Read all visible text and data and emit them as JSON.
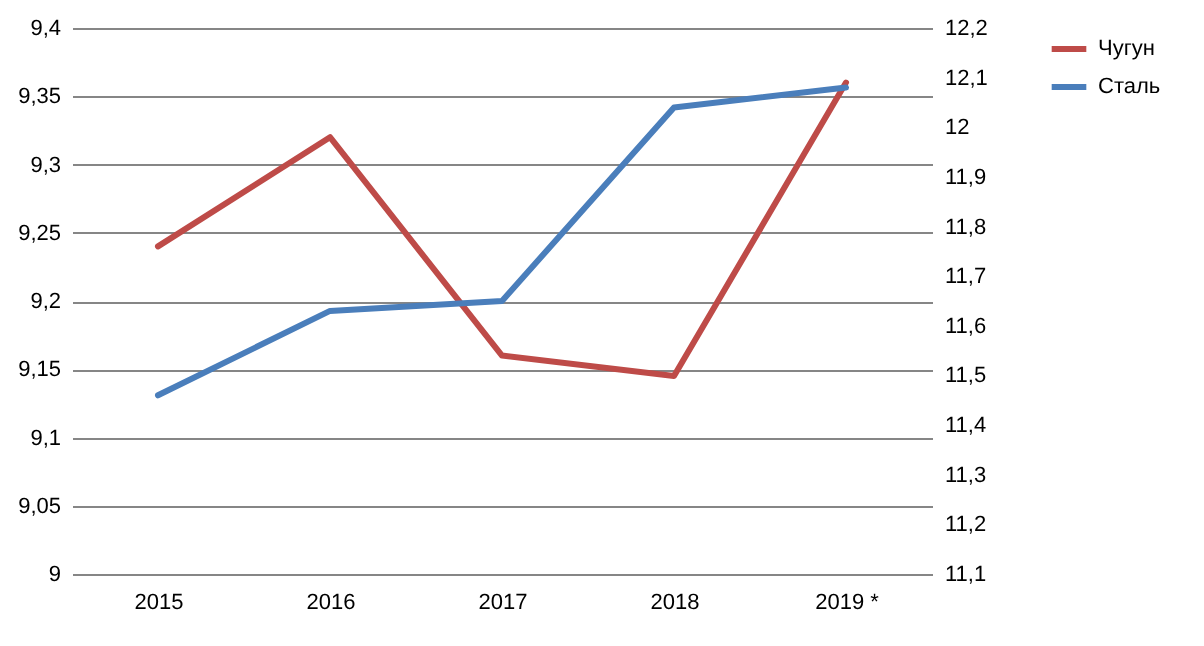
{
  "chart_data": {
    "type": "line",
    "categories": [
      "2015",
      "2016",
      "2017",
      "2018",
      "2019 *"
    ],
    "series": [
      {
        "name": "Чугун",
        "color": "#be4b48",
        "values": [
          9.24,
          9.32,
          9.16,
          9.145,
          9.36
        ]
      },
      {
        "name": "Сталь",
        "color": "#4a7ebb",
        "axis": "y2",
        "values": [
          11.46,
          11.63,
          11.65,
          12.04,
          12.08
        ]
      }
    ],
    "ylim": [
      9,
      9.4
    ],
    "yticks": [
      {
        "value": 9,
        "label": "9"
      },
      {
        "value": 9.05,
        "label": "9,05"
      },
      {
        "value": 9.1,
        "label": "9,1"
      },
      {
        "value": 9.15,
        "label": "9,15"
      },
      {
        "value": 9.2,
        "label": "9,2"
      },
      {
        "value": 9.25,
        "label": "9,25"
      },
      {
        "value": 9.3,
        "label": "9,3"
      },
      {
        "value": 9.35,
        "label": "9,35"
      },
      {
        "value": 9.4,
        "label": "9,4"
      }
    ],
    "y2lim": [
      11.1,
      12.2
    ],
    "y2ticks": [
      {
        "value": 11.1,
        "label": "11,1"
      },
      {
        "value": 11.2,
        "label": "11,2"
      },
      {
        "value": 11.3,
        "label": "11,3"
      },
      {
        "value": 11.4,
        "label": "11,4"
      },
      {
        "value": 11.5,
        "label": "11,5"
      },
      {
        "value": 11.6,
        "label": "11,6"
      },
      {
        "value": 11.7,
        "label": "11,7"
      },
      {
        "value": 11.8,
        "label": "11,8"
      },
      {
        "value": 11.9,
        "label": "11,9"
      },
      {
        "value": 12,
        "label": "12"
      },
      {
        "value": 12.1,
        "label": "12,1"
      },
      {
        "value": 12.2,
        "label": "12,2"
      }
    ],
    "grid": "y",
    "legend": "right",
    "line_style": "solid"
  }
}
